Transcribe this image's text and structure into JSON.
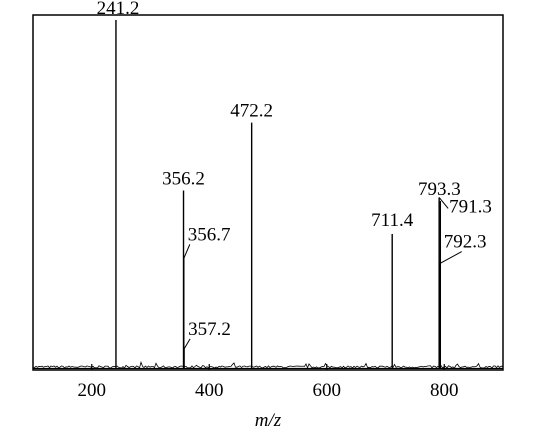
{
  "chart_data": {
    "type": "line",
    "xlabel": "m/z",
    "ylabel": "",
    "title": "",
    "xlim": [
      100,
      900
    ],
    "ylim": [
      0,
      100
    ],
    "grid": false,
    "xticks": [
      200,
      400,
      600,
      800
    ],
    "xtick_labels": [
      "200",
      "400",
      "600",
      "800"
    ],
    "peaks": [
      {
        "x": 241.2,
        "y": 100.0
      },
      {
        "x": 356.2,
        "y": 51.0
      },
      {
        "x": 356.7,
        "y": 31.5
      },
      {
        "x": 357.2,
        "y": 5.5
      },
      {
        "x": 472.2,
        "y": 70.5
      },
      {
        "x": 711.4,
        "y": 38.5
      },
      {
        "x": 791.3,
        "y": 49.0
      },
      {
        "x": 792.3,
        "y": 30.0
      },
      {
        "x": 793.3,
        "y": 48.0
      }
    ],
    "annotations": [
      {
        "label": "241.2",
        "x": 241.2
      },
      {
        "label": "356.2",
        "x": 356.2
      },
      {
        "label": "356.7",
        "x": 356.7
      },
      {
        "label": "357.2",
        "x": 357.2
      },
      {
        "label": "472.2",
        "x": 472.2
      },
      {
        "label": "711.4",
        "x": 711.4
      },
      {
        "label": "793.3",
        "x": 793.3
      },
      {
        "label": "791.3",
        "x": 791.3
      },
      {
        "label": "792.3",
        "x": 792.3
      }
    ]
  }
}
